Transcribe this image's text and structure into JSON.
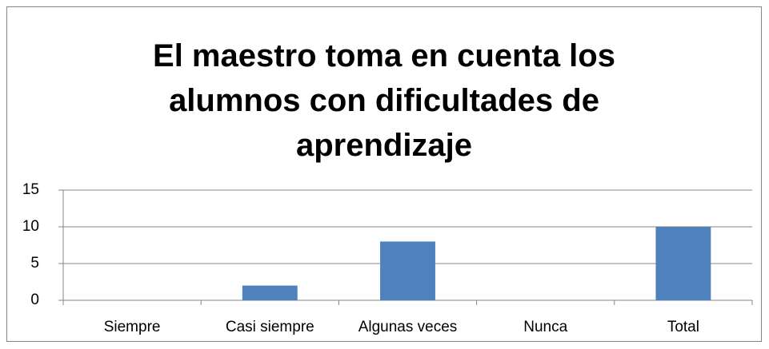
{
  "chart_data": {
    "type": "bar",
    "title": "El maestro toma en cuenta los alumnos con dificultades de aprendizaje",
    "categories": [
      "Siempre",
      "Casi siempre",
      "Algunas veces",
      "Nunca",
      "Total"
    ],
    "values": [
      0,
      2,
      8,
      0,
      10
    ],
    "color": "#4f81bd",
    "ylim": [
      0,
      15
    ],
    "yticks": [
      0,
      5,
      10,
      15
    ],
    "grid": true
  }
}
